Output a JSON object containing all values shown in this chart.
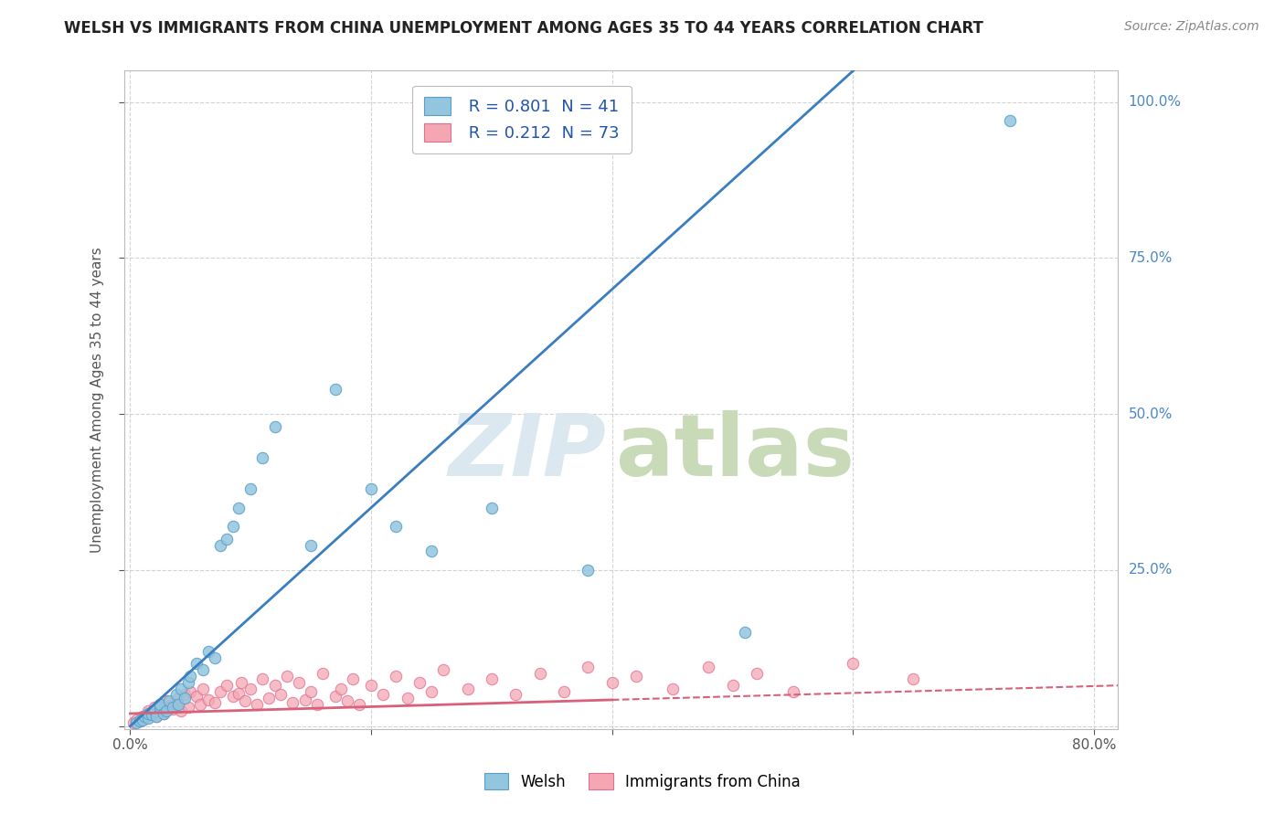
{
  "title": "WELSH VS IMMIGRANTS FROM CHINA UNEMPLOYMENT AMONG AGES 35 TO 44 YEARS CORRELATION CHART",
  "source": "Source: ZipAtlas.com",
  "ylabel": "Unemployment Among Ages 35 to 44 years",
  "xlim": [
    -0.005,
    0.82
  ],
  "ylim": [
    -0.005,
    1.05
  ],
  "welsh_R": 0.801,
  "welsh_N": 41,
  "china_R": 0.212,
  "china_N": 73,
  "welsh_color": "#92c5de",
  "welsh_edge_color": "#5b9fc9",
  "china_color": "#f4a7b3",
  "china_edge_color": "#e07090",
  "welsh_line_color": "#3a7ebf",
  "china_line_color": "#d9607a",
  "background_color": "#ffffff",
  "grid_color": "#c8c8c8",
  "title_color": "#222222",
  "source_color": "#888888",
  "tick_color": "#4a86c8",
  "ylabel_color": "#555555",
  "watermark_zip_color": "#dce8f0",
  "watermark_atlas_color": "#c8dab8",
  "welsh_scatter_x": [
    0.005,
    0.008,
    0.01,
    0.012,
    0.015,
    0.015,
    0.018,
    0.02,
    0.022,
    0.025,
    0.025,
    0.028,
    0.03,
    0.032,
    0.035,
    0.038,
    0.04,
    0.042,
    0.045,
    0.048,
    0.05,
    0.055,
    0.06,
    0.065,
    0.07,
    0.075,
    0.08,
    0.085,
    0.09,
    0.1,
    0.11,
    0.12,
    0.15,
    0.17,
    0.2,
    0.22,
    0.25,
    0.3,
    0.38,
    0.51,
    0.73
  ],
  "welsh_scatter_y": [
    0.005,
    0.008,
    0.01,
    0.015,
    0.012,
    0.02,
    0.018,
    0.025,
    0.015,
    0.03,
    0.035,
    0.02,
    0.025,
    0.04,
    0.03,
    0.05,
    0.035,
    0.06,
    0.045,
    0.07,
    0.08,
    0.1,
    0.09,
    0.12,
    0.11,
    0.29,
    0.3,
    0.32,
    0.35,
    0.38,
    0.43,
    0.48,
    0.29,
    0.54,
    0.38,
    0.32,
    0.28,
    0.35,
    0.25,
    0.15,
    0.97
  ],
  "china_scatter_x": [
    0.003,
    0.005,
    0.008,
    0.01,
    0.012,
    0.015,
    0.015,
    0.018,
    0.02,
    0.022,
    0.025,
    0.025,
    0.028,
    0.03,
    0.032,
    0.035,
    0.038,
    0.04,
    0.042,
    0.045,
    0.048,
    0.05,
    0.055,
    0.058,
    0.06,
    0.065,
    0.07,
    0.075,
    0.08,
    0.085,
    0.09,
    0.092,
    0.095,
    0.1,
    0.105,
    0.11,
    0.115,
    0.12,
    0.125,
    0.13,
    0.135,
    0.14,
    0.145,
    0.15,
    0.155,
    0.16,
    0.17,
    0.175,
    0.18,
    0.185,
    0.19,
    0.2,
    0.21,
    0.22,
    0.23,
    0.24,
    0.25,
    0.26,
    0.28,
    0.3,
    0.32,
    0.34,
    0.36,
    0.38,
    0.4,
    0.42,
    0.45,
    0.48,
    0.5,
    0.52,
    0.55,
    0.6,
    0.65
  ],
  "china_scatter_y": [
    0.005,
    0.01,
    0.008,
    0.015,
    0.012,
    0.018,
    0.025,
    0.02,
    0.03,
    0.015,
    0.025,
    0.035,
    0.02,
    0.04,
    0.03,
    0.028,
    0.035,
    0.045,
    0.025,
    0.05,
    0.03,
    0.055,
    0.048,
    0.035,
    0.06,
    0.042,
    0.038,
    0.055,
    0.065,
    0.048,
    0.052,
    0.07,
    0.04,
    0.06,
    0.035,
    0.075,
    0.045,
    0.065,
    0.05,
    0.08,
    0.038,
    0.07,
    0.042,
    0.055,
    0.035,
    0.085,
    0.048,
    0.06,
    0.04,
    0.075,
    0.035,
    0.065,
    0.05,
    0.08,
    0.045,
    0.07,
    0.055,
    0.09,
    0.06,
    0.075,
    0.05,
    0.085,
    0.055,
    0.095,
    0.07,
    0.08,
    0.06,
    0.095,
    0.065,
    0.085,
    0.055,
    0.1,
    0.075
  ],
  "title_fontsize": 12,
  "axis_fontsize": 11,
  "tick_fontsize": 11,
  "source_fontsize": 10,
  "marker_size": 80
}
